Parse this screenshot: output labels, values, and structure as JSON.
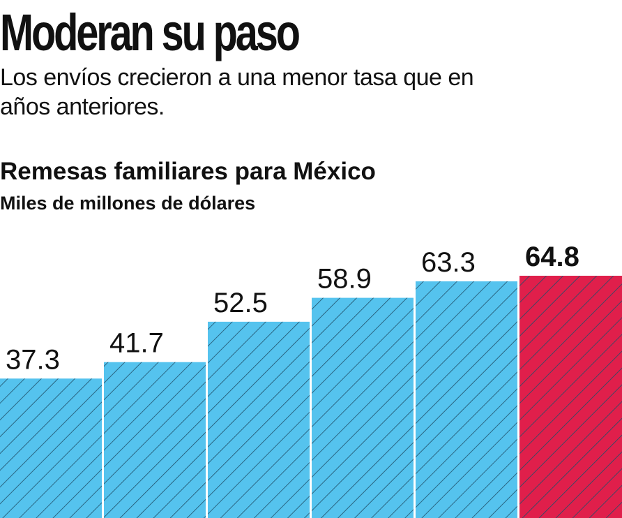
{
  "headline": "Moderan su paso",
  "subheadline": "Los envíos crecieron a una menor tasa que en años anteriores.",
  "colors": {
    "bar": "#55c3ee",
    "highlight": "#e01f4b",
    "hatch": "#1f4f68",
    "text": "#111111"
  },
  "chart_data": {
    "type": "bar",
    "title": "Remesas familiares para México",
    "subtitle": "Miles de millones de dólares",
    "categories": [
      "",
      "",
      "",
      "",
      "",
      ""
    ],
    "values": [
      37.3,
      41.7,
      52.5,
      58.9,
      63.3,
      64.8
    ],
    "value_labels": [
      "37.3",
      "41.7",
      "52.5",
      "58.9",
      "63.3",
      "64.8"
    ],
    "highlight_index": 5,
    "xlabel": "",
    "ylabel": "",
    "grid": false,
    "ylim": [
      0,
      64.8
    ]
  }
}
